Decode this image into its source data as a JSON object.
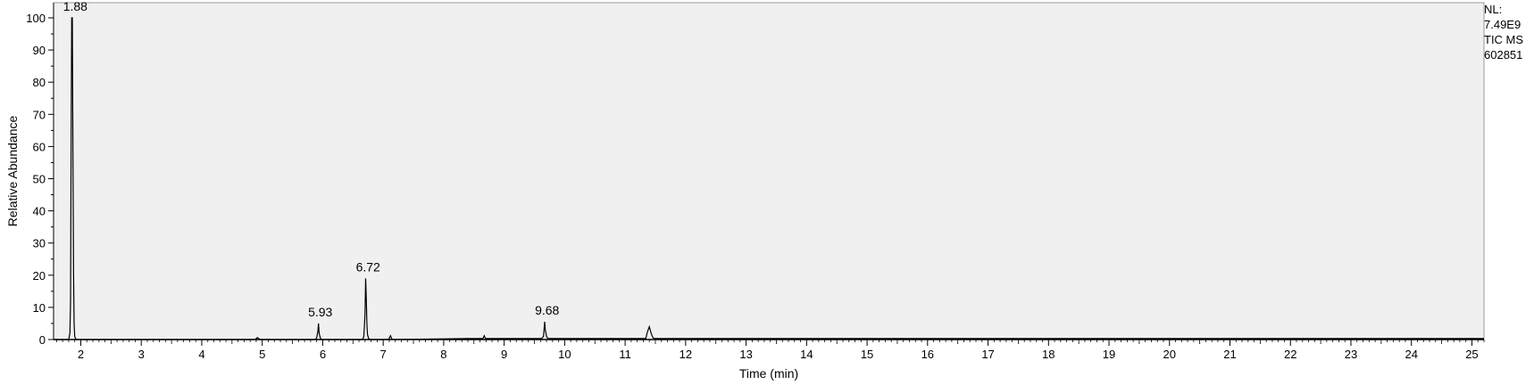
{
  "chart_data": {
    "type": "line",
    "title": "",
    "xlabel": "Time (min)",
    "ylabel": "Relative Abundance",
    "xlim": [
      1.55,
      25.2
    ],
    "ylim": [
      0,
      100
    ],
    "x_ticks": [
      "2",
      "3",
      "4",
      "5",
      "6",
      "7",
      "8",
      "9",
      "10",
      "11",
      "12",
      "13",
      "14",
      "15",
      "16",
      "17",
      "18",
      "19",
      "20",
      "21",
      "22",
      "23",
      "24",
      "25"
    ],
    "y_ticks": [
      "0",
      "10",
      "20",
      "30",
      "40",
      "50",
      "60",
      "70",
      "80",
      "90",
      "100"
    ],
    "grid": false,
    "background_color": "#f0f0f0",
    "trace_color": "#000000",
    "series": [
      {
        "x": [
          1.55,
          1.8,
          1.82,
          1.83,
          1.84,
          1.85,
          1.86,
          1.87,
          1.88,
          1.89,
          1.9,
          1.91,
          1.93,
          4.88,
          4.92,
          4.96,
          5.88,
          5.9,
          5.92,
          5.93,
          5.94,
          5.96,
          5.98,
          6.66,
          6.68,
          6.7,
          6.71,
          6.72,
          6.73,
          6.74,
          6.76,
          6.78,
          7.08,
          7.1,
          7.12,
          7.14,
          7.16,
          8.4,
          8.65,
          8.67,
          8.69,
          8.71,
          9.62,
          9.65,
          9.67,
          9.68,
          9.7,
          9.72,
          9.76,
          11.34,
          11.37,
          11.4,
          11.43,
          11.46,
          11.49,
          25.2
        ],
        "y": [
          0,
          0,
          2,
          12,
          57,
          100,
          100,
          57,
          20,
          5,
          1,
          0.4,
          0,
          0,
          0.6,
          0,
          0,
          0.6,
          2.5,
          5,
          2,
          0.5,
          0,
          0,
          1,
          8,
          19,
          13,
          5,
          1.5,
          0.3,
          0,
          0,
          0.4,
          1.2,
          0.3,
          0,
          0.3,
          0.3,
          1.2,
          0.4,
          0.3,
          0.3,
          1,
          5.5,
          3,
          1,
          0.4,
          0.3,
          0.3,
          2.5,
          4,
          2,
          0.5,
          0.3,
          0.3
        ]
      }
    ],
    "peak_labels": [
      {
        "x": 1.88,
        "y": 100,
        "text": "1.88"
      },
      {
        "x": 5.93,
        "y": 5,
        "text": "5.93"
      },
      {
        "x": 6.72,
        "y": 19,
        "text": "6.72"
      },
      {
        "x": 9.68,
        "y": 5.5,
        "text": "9.68"
      }
    ]
  },
  "info": {
    "line1": "NL:",
    "line2": "7.49E9",
    "line3": "TIC  MS",
    "line4": "602851"
  }
}
